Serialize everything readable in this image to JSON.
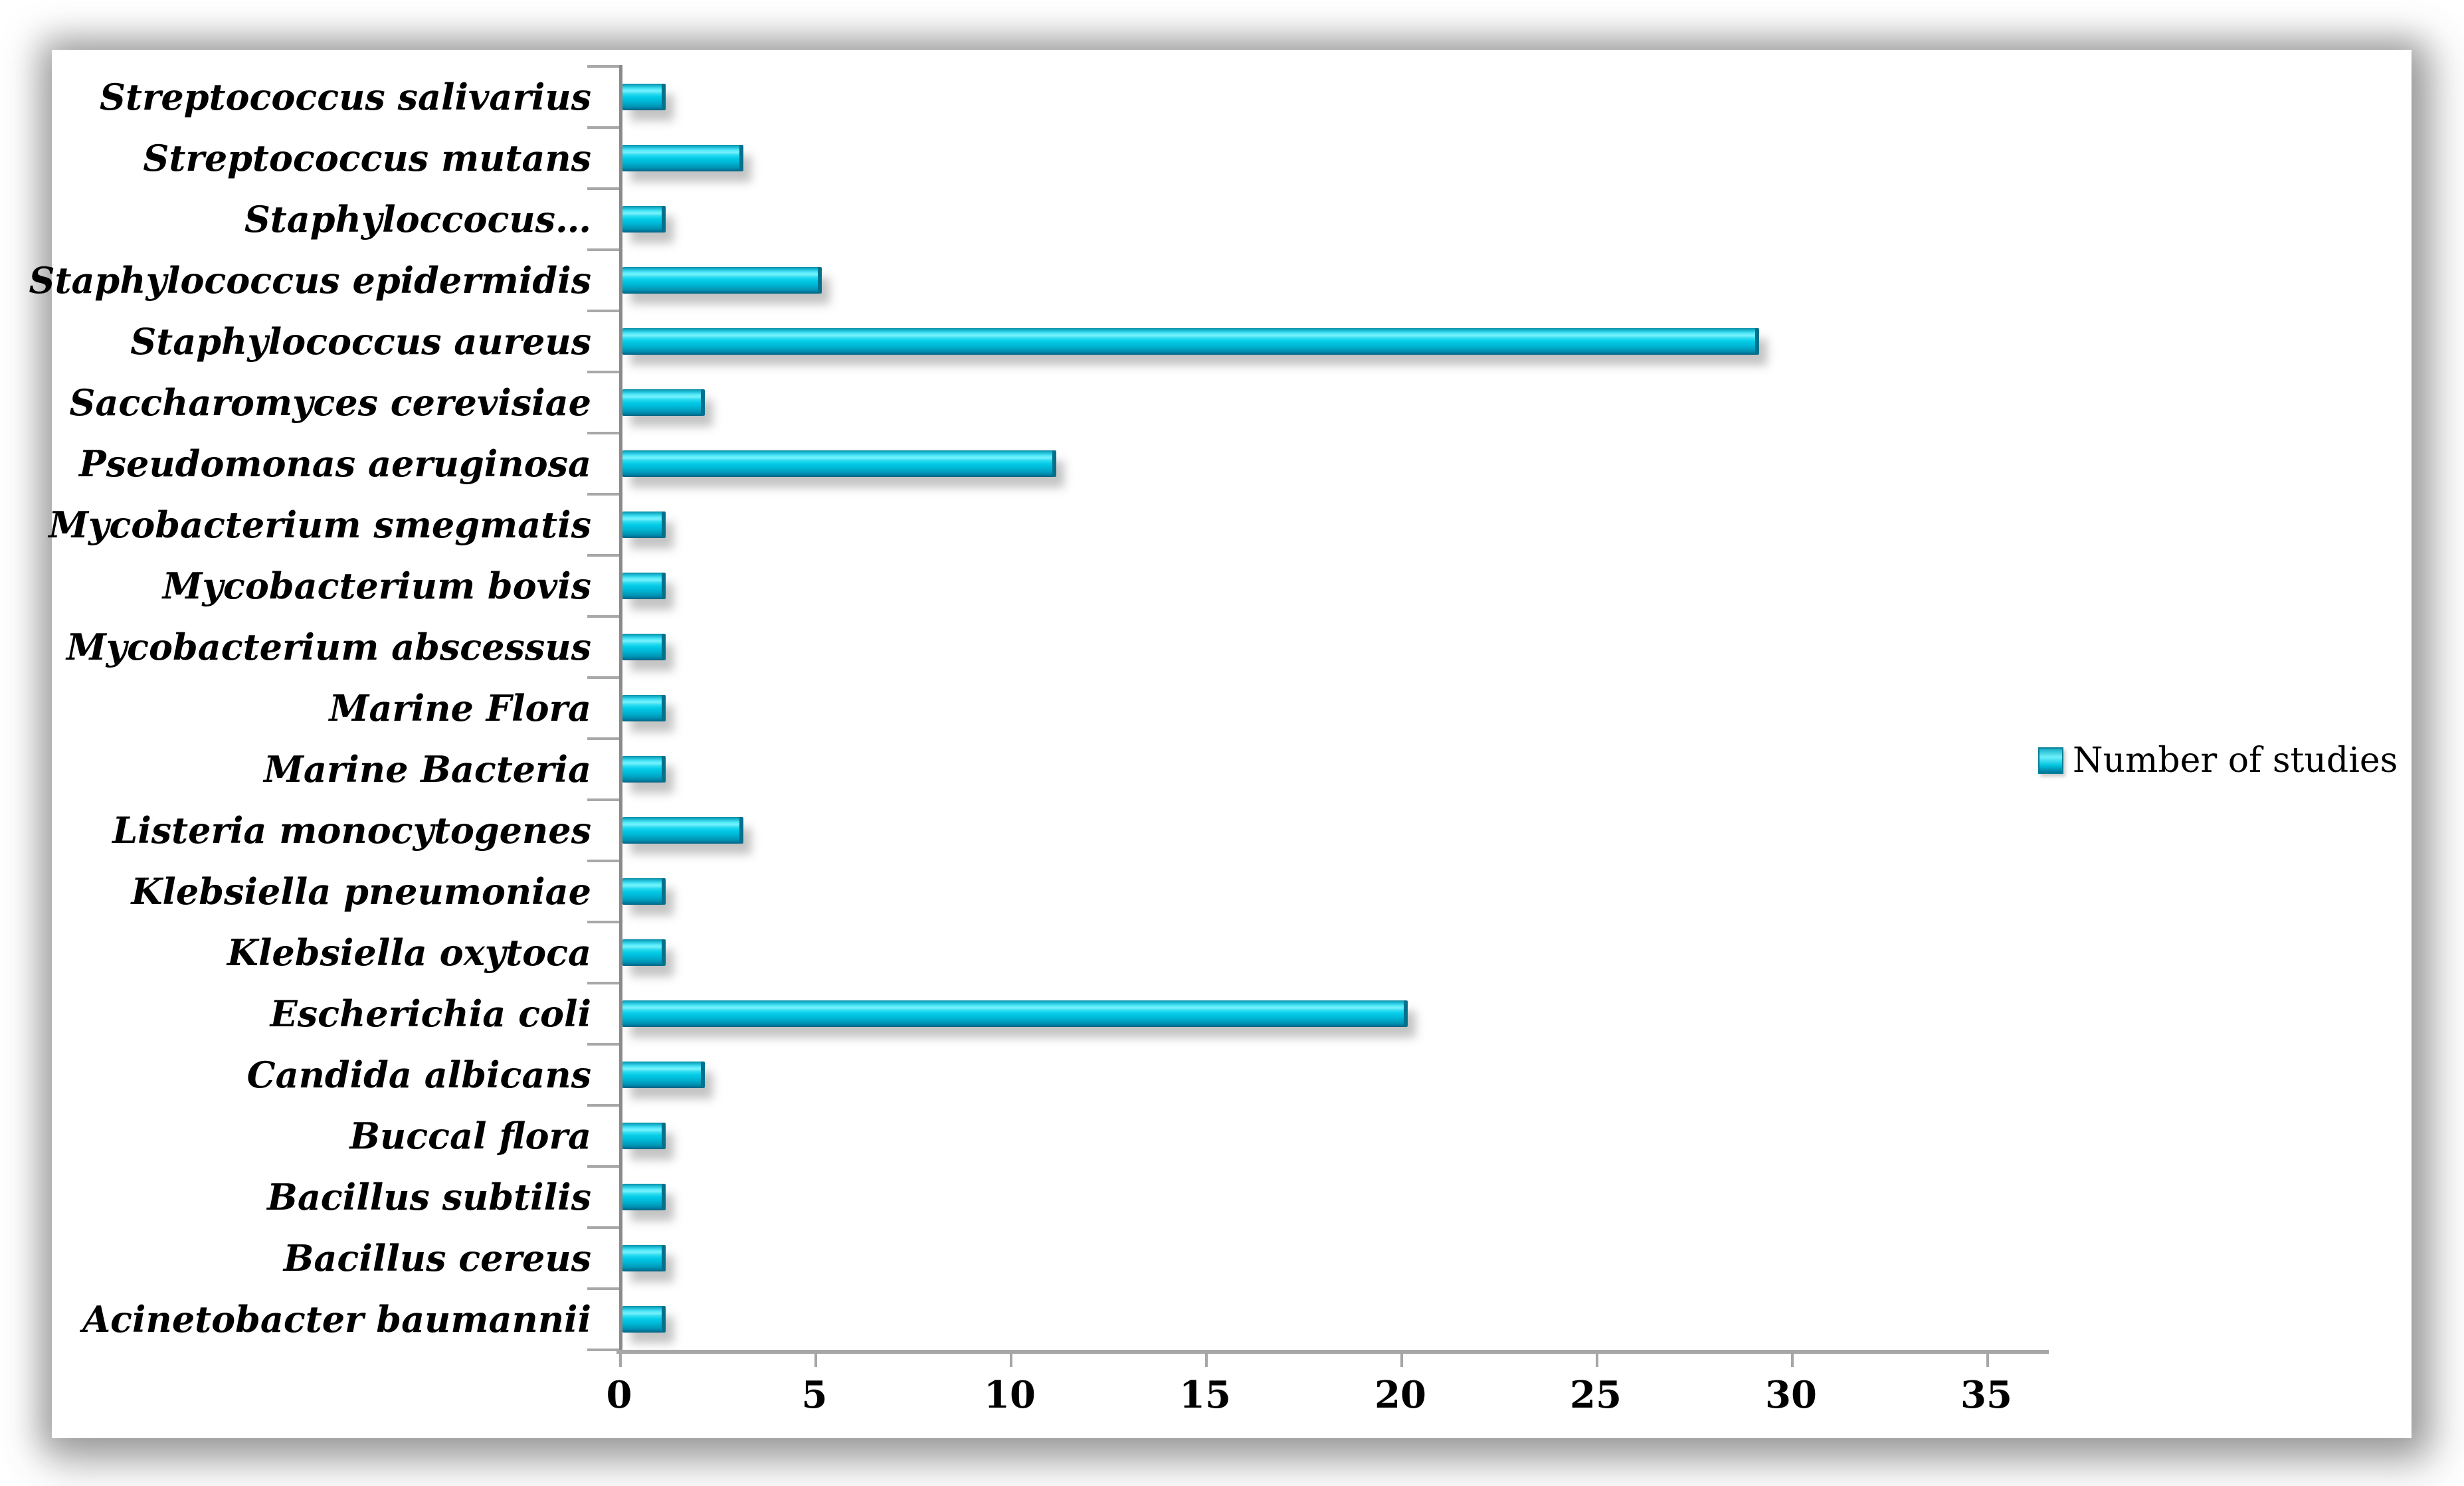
{
  "legend": {
    "label": "Number of studies"
  },
  "chart_data": {
    "type": "bar",
    "orientation": "horizontal",
    "title": "",
    "xlabel": "",
    "ylabel": "",
    "grid": false,
    "legend_position": "right",
    "legend_entries": [
      "Number of studies"
    ],
    "bar_color": "#00c4df",
    "categories": [
      "Streptococcus salivarius",
      "Streptococcus mutans",
      "Staphyloccocus…",
      "Staphylococcus epidermidis",
      "Staphylococcus aureus",
      "Saccharomyces cerevisiae",
      "Pseudomonas aeruginosa",
      "Mycobacterium smegmatis",
      "Mycobacterium bovis",
      "Mycobacterium abscessus",
      "Marine Flora",
      "Marine Bacteria",
      "Listeria monocytogenes",
      "Klebsiella pneumoniae",
      "Klebsiella oxytoca",
      "Escherichia coli",
      "Candida albicans",
      "Buccal flora",
      "Bacillus subtilis",
      "Bacillus cereus",
      "Acinetobacter baumannii"
    ],
    "series": [
      {
        "name": "Number of studies",
        "values": [
          1,
          3,
          1,
          5,
          29,
          2,
          11,
          1,
          1,
          1,
          1,
          1,
          3,
          1,
          1,
          20,
          2,
          1,
          1,
          1,
          1
        ]
      }
    ],
    "xlim": [
      0,
      35
    ],
    "x_ticks": [
      0,
      5,
      10,
      15,
      20,
      25,
      30,
      35
    ]
  }
}
